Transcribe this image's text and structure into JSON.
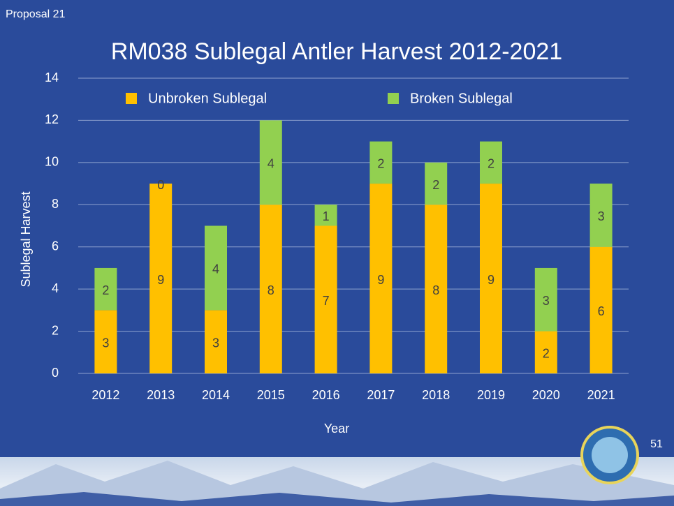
{
  "slide": {
    "label": "Proposal 21",
    "page_number": "51"
  },
  "chart_data": {
    "type": "bar",
    "stacked": true,
    "title": "RM038 Sublegal Antler Harvest 2012-2021",
    "xlabel": "Year",
    "ylabel": "Sublegal Harvest",
    "categories": [
      "2012",
      "2013",
      "2014",
      "2015",
      "2016",
      "2017",
      "2018",
      "2019",
      "2020",
      "2021"
    ],
    "series": [
      {
        "name": "Unbroken Sublegal",
        "color": "#ffc000",
        "values": [
          3,
          9,
          3,
          8,
          7,
          9,
          8,
          9,
          2,
          6
        ]
      },
      {
        "name": "Broken Sublegal",
        "color": "#92d050",
        "values": [
          2,
          0,
          4,
          4,
          1,
          2,
          2,
          2,
          3,
          3
        ]
      }
    ],
    "ylim": [
      0,
      14
    ],
    "yticks": [
      0,
      2,
      4,
      6,
      8,
      10,
      12,
      14
    ],
    "grid": true,
    "legend": "top",
    "data_labels": true
  }
}
